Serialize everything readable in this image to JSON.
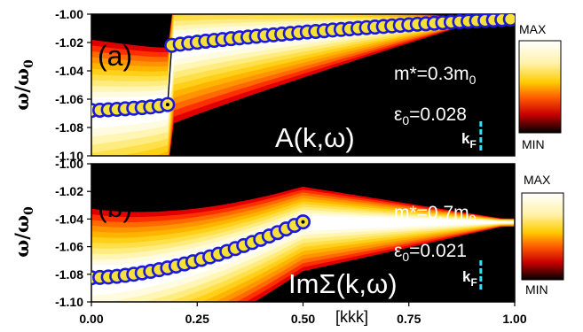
{
  "chart_data": [
    {
      "type": "heatmap",
      "panel_label": "(a)",
      "title": "A(k,ω)",
      "mass_label": "m*=0.3m",
      "mass_sub": "0",
      "eps_label": "ε",
      "eps_sub": "0",
      "eps_value": "=0.028",
      "kf_main": "k",
      "kf_sub": "F",
      "kf_x": 0.92,
      "ylabel": "ω/ω",
      "ylabel_sub": "0",
      "ylim": [
        -1.1,
        -1.0
      ],
      "xlim": [
        0.0,
        1.0
      ],
      "yticks": [
        "-1.00",
        "-1.02",
        "-1.04",
        "-1.06",
        "-1.08",
        "-1.10"
      ],
      "colorbar": {
        "max_label": "MAX",
        "min_label": "MIN"
      },
      "series": [
        {
          "x": [
            0.0,
            0.02,
            0.04,
            0.06,
            0.08,
            0.1,
            0.12,
            0.14,
            0.16,
            0.18,
            0.19,
            0.21,
            0.23,
            0.25,
            0.27,
            0.29,
            0.31,
            0.33,
            0.35,
            0.37,
            0.39,
            0.41,
            0.43,
            0.45,
            0.47,
            0.49,
            0.51,
            0.53,
            0.55,
            0.57,
            0.59,
            0.61,
            0.63,
            0.65,
            0.67,
            0.69,
            0.71,
            0.73,
            0.75,
            0.77,
            0.79,
            0.81,
            0.83,
            0.85,
            0.87,
            0.89,
            0.91,
            0.93,
            0.95,
            0.97,
            0.99
          ],
          "y": [
            -1.068,
            -1.0678,
            -1.0675,
            -1.0672,
            -1.0668,
            -1.0664,
            -1.066,
            -1.0655,
            -1.0648,
            -1.0638,
            -1.022,
            -1.0212,
            -1.0205,
            -1.0198,
            -1.0191,
            -1.0185,
            -1.0179,
            -1.0173,
            -1.0167,
            -1.0162,
            -1.0156,
            -1.0151,
            -1.0146,
            -1.0141,
            -1.0136,
            -1.0131,
            -1.0126,
            -1.0122,
            -1.0117,
            -1.0112,
            -1.0108,
            -1.0104,
            -1.0099,
            -1.0095,
            -1.0091,
            -1.0087,
            -1.0083,
            -1.0079,
            -1.0075,
            -1.0071,
            -1.0068,
            -1.0064,
            -1.006,
            -1.0057,
            -1.0053,
            -1.005,
            -1.0047,
            -1.0044,
            -1.0041,
            -1.0038,
            -1.0035
          ]
        }
      ]
    },
    {
      "type": "heatmap",
      "panel_label": "(b)",
      "title": "ImΣ(k,ω)",
      "mass_label": "m*=0.7m",
      "mass_sub": "0",
      "eps_label": "ε",
      "eps_sub": "0",
      "eps_value": "=0.021",
      "kf_main": "k",
      "kf_sub": "F",
      "kf_x": 0.92,
      "ylabel": "ω/ω",
      "ylabel_sub": "0",
      "ylim": [
        -1.1,
        -1.0
      ],
      "xlim": [
        0.0,
        1.0
      ],
      "yticks": [
        "-1.00",
        "-1.02",
        "-1.04",
        "-1.06",
        "-1.08",
        "-1.10"
      ],
      "xticks": [
        "0.00",
        "0.25",
        "0.50",
        "0.75",
        "1.00"
      ],
      "xlabel": "[kkk]",
      "colorbar": {
        "max_label": "MAX",
        "min_label": "MIN"
      },
      "series": [
        {
          "x": [
            0.0,
            0.02,
            0.04,
            0.06,
            0.08,
            0.1,
            0.12,
            0.14,
            0.16,
            0.18,
            0.2,
            0.22,
            0.24,
            0.26,
            0.28,
            0.3,
            0.32,
            0.34,
            0.36,
            0.38,
            0.4,
            0.42,
            0.44,
            0.46,
            0.48,
            0.5
          ],
          "y": [
            -1.0825,
            -1.0823,
            -1.082,
            -1.0815,
            -1.0808,
            -1.08,
            -1.079,
            -1.0779,
            -1.0767,
            -1.0754,
            -1.074,
            -1.0725,
            -1.0709,
            -1.0692,
            -1.0674,
            -1.0655,
            -1.0635,
            -1.0614,
            -1.0592,
            -1.057,
            -1.0547,
            -1.0523,
            -1.0498,
            -1.0472,
            -1.0446,
            -1.0421
          ]
        }
      ]
    }
  ]
}
